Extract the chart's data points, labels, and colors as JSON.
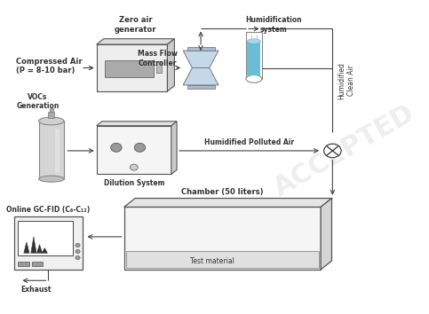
{
  "bg_color": "#ffffff",
  "text_color": "#333333",
  "box_edge": "#555555",
  "arrow_color": "#444444",
  "line_color": "#444444",
  "blue_color": "#6bbdd4",
  "light_gray": "#c8c8c8",
  "dark_gray": "#888888",
  "labels": {
    "compressed_air": "Compressed Air\n(P = 8-10 bar)",
    "zero_air": "Zero air\ngenerator",
    "humidification": "Humidification\nsystem",
    "mass_flow": "Mass Flow\nController",
    "humidified_clean": "Humidified\nClean Air",
    "vocs_generation": "VOCs\nGeneration",
    "dilution": "Dilution System",
    "humidified_polluted": "Humidified Polluted Air",
    "chamber": "Chamber (50 liters)",
    "test_material": "Test material",
    "gc_fid": "Online GC-FID (C₆-C₁₂)",
    "exhaust": "Exhaust"
  },
  "figsize": [
    4.83,
    3.54
  ],
  "dpi": 100
}
